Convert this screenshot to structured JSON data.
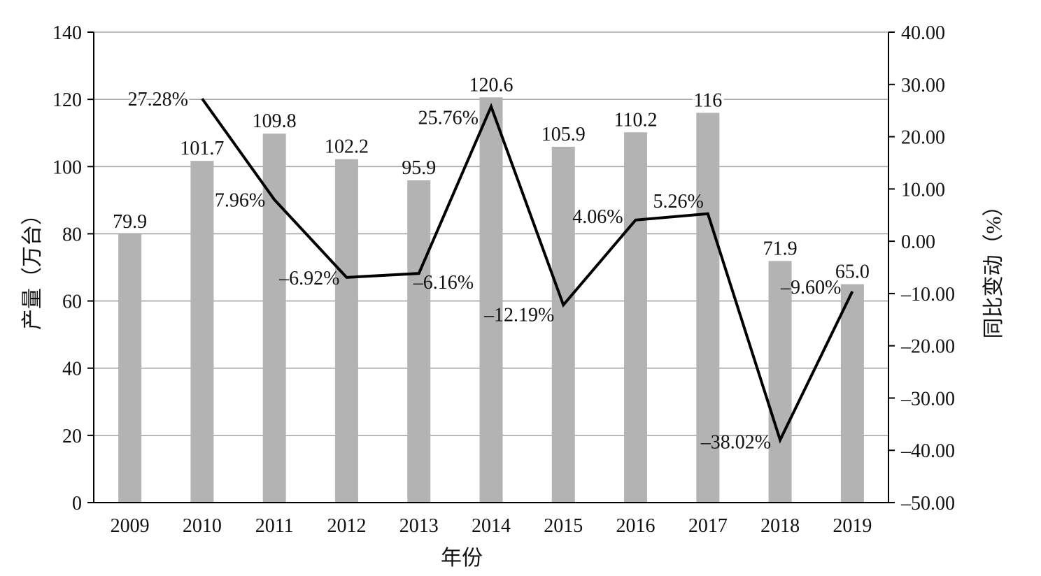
{
  "chart_data": {
    "type": "bar",
    "categories": [
      "2009",
      "2010",
      "2011",
      "2012",
      "2013",
      "2014",
      "2015",
      "2016",
      "2017",
      "2018",
      "2019"
    ],
    "series": [
      {
        "type": "bar",
        "axis": "left",
        "color": "#b3b3b3",
        "values": [
          79.9,
          101.7,
          109.8,
          102.2,
          95.9,
          120.6,
          105.9,
          110.2,
          116,
          71.9,
          65.0
        ],
        "labels": [
          "79.9",
          "101.7",
          "109.8",
          "102.2",
          "95.9",
          "120.6",
          "105.9",
          "110.2",
          "116",
          "71.9",
          "65.0"
        ]
      },
      {
        "type": "line",
        "axis": "right",
        "color": "#000000",
        "x": [
          "2010",
          "2011",
          "2012",
          "2013",
          "2014",
          "2015",
          "2016",
          "2017",
          "2018",
          "2019"
        ],
        "values": [
          27.28,
          7.96,
          -6.92,
          -6.16,
          25.76,
          -12.19,
          4.06,
          5.26,
          -38.02,
          -9.6
        ],
        "labels": [
          "27.28%",
          "7.96%",
          "–6.92%",
          "–6.16%",
          "25.76%",
          "–12.19%",
          "4.06%",
          "5.26%",
          "–38.02%",
          "–9.60%"
        ]
      }
    ],
    "xlabel": "年份",
    "ylabel": "产量（万台）",
    "y2label": "同比变动（%）",
    "ylim": [
      0,
      140
    ],
    "yticks": [
      "0",
      "20",
      "40",
      "60",
      "80",
      "100",
      "120",
      "140"
    ],
    "y2lim": [
      -50,
      40
    ],
    "y2ticks": [
      "–50.00",
      "–40.00",
      "–30.00",
      "–20.00",
      "–10.00",
      "0.00",
      "10.00",
      "20.00",
      "30.00",
      "40.00"
    ],
    "grid": true,
    "legend": "none"
  }
}
